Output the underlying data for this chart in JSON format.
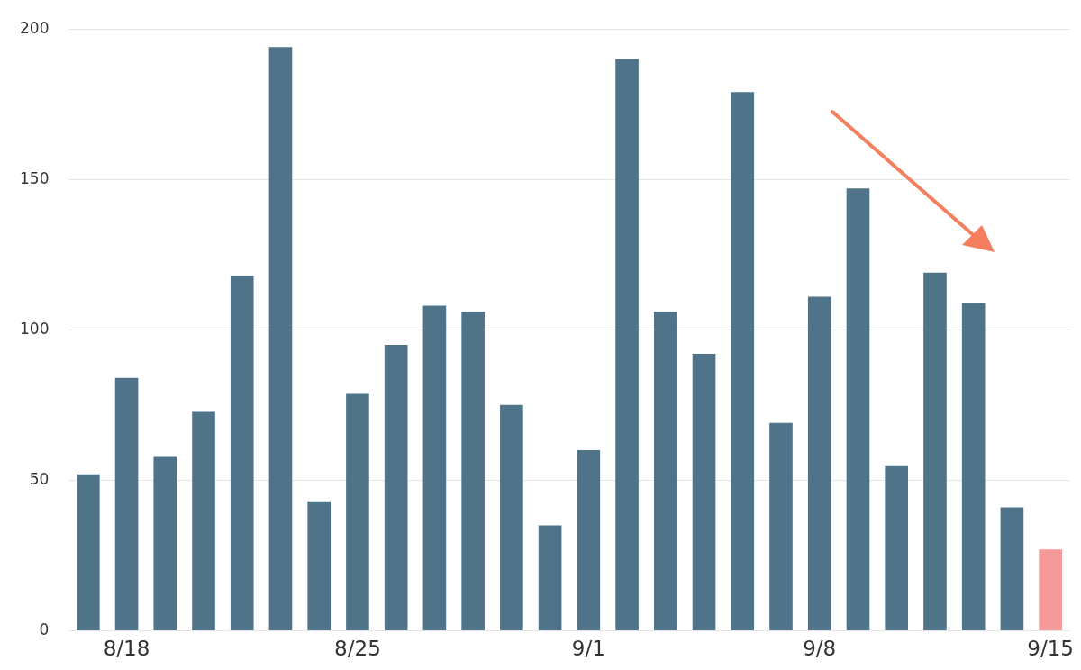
{
  "chart_data": {
    "type": "bar",
    "categories": [
      null,
      "8/18",
      null,
      null,
      null,
      null,
      null,
      "8/25",
      null,
      null,
      null,
      null,
      null,
      "9/1",
      null,
      null,
      null,
      null,
      null,
      "9/8",
      null,
      null,
      null,
      null,
      null,
      "9/15"
    ],
    "values": [
      52,
      84,
      58,
      73,
      118,
      194,
      43,
      79,
      95,
      108,
      106,
      75,
      35,
      60,
      190,
      106,
      92,
      179,
      69,
      111,
      147,
      55,
      119,
      109,
      41,
      27
    ],
    "colors": [
      "#4f7489",
      "#4f7489",
      "#4f7489",
      "#4f7489",
      "#4f7489",
      "#4f7489",
      "#4f7489",
      "#4f7489",
      "#4f7489",
      "#4f7489",
      "#4f7489",
      "#4f7489",
      "#4f7489",
      "#4f7489",
      "#4f7489",
      "#4f7489",
      "#4f7489",
      "#4f7489",
      "#4f7489",
      "#4f7489",
      "#4f7489",
      "#4f7489",
      "#4f7489",
      "#4f7489",
      "#4f7489",
      "#f4999a"
    ],
    "ylim": [
      0,
      200
    ],
    "yticks": [
      0,
      50,
      100,
      150,
      200
    ],
    "grid": "y"
  }
}
